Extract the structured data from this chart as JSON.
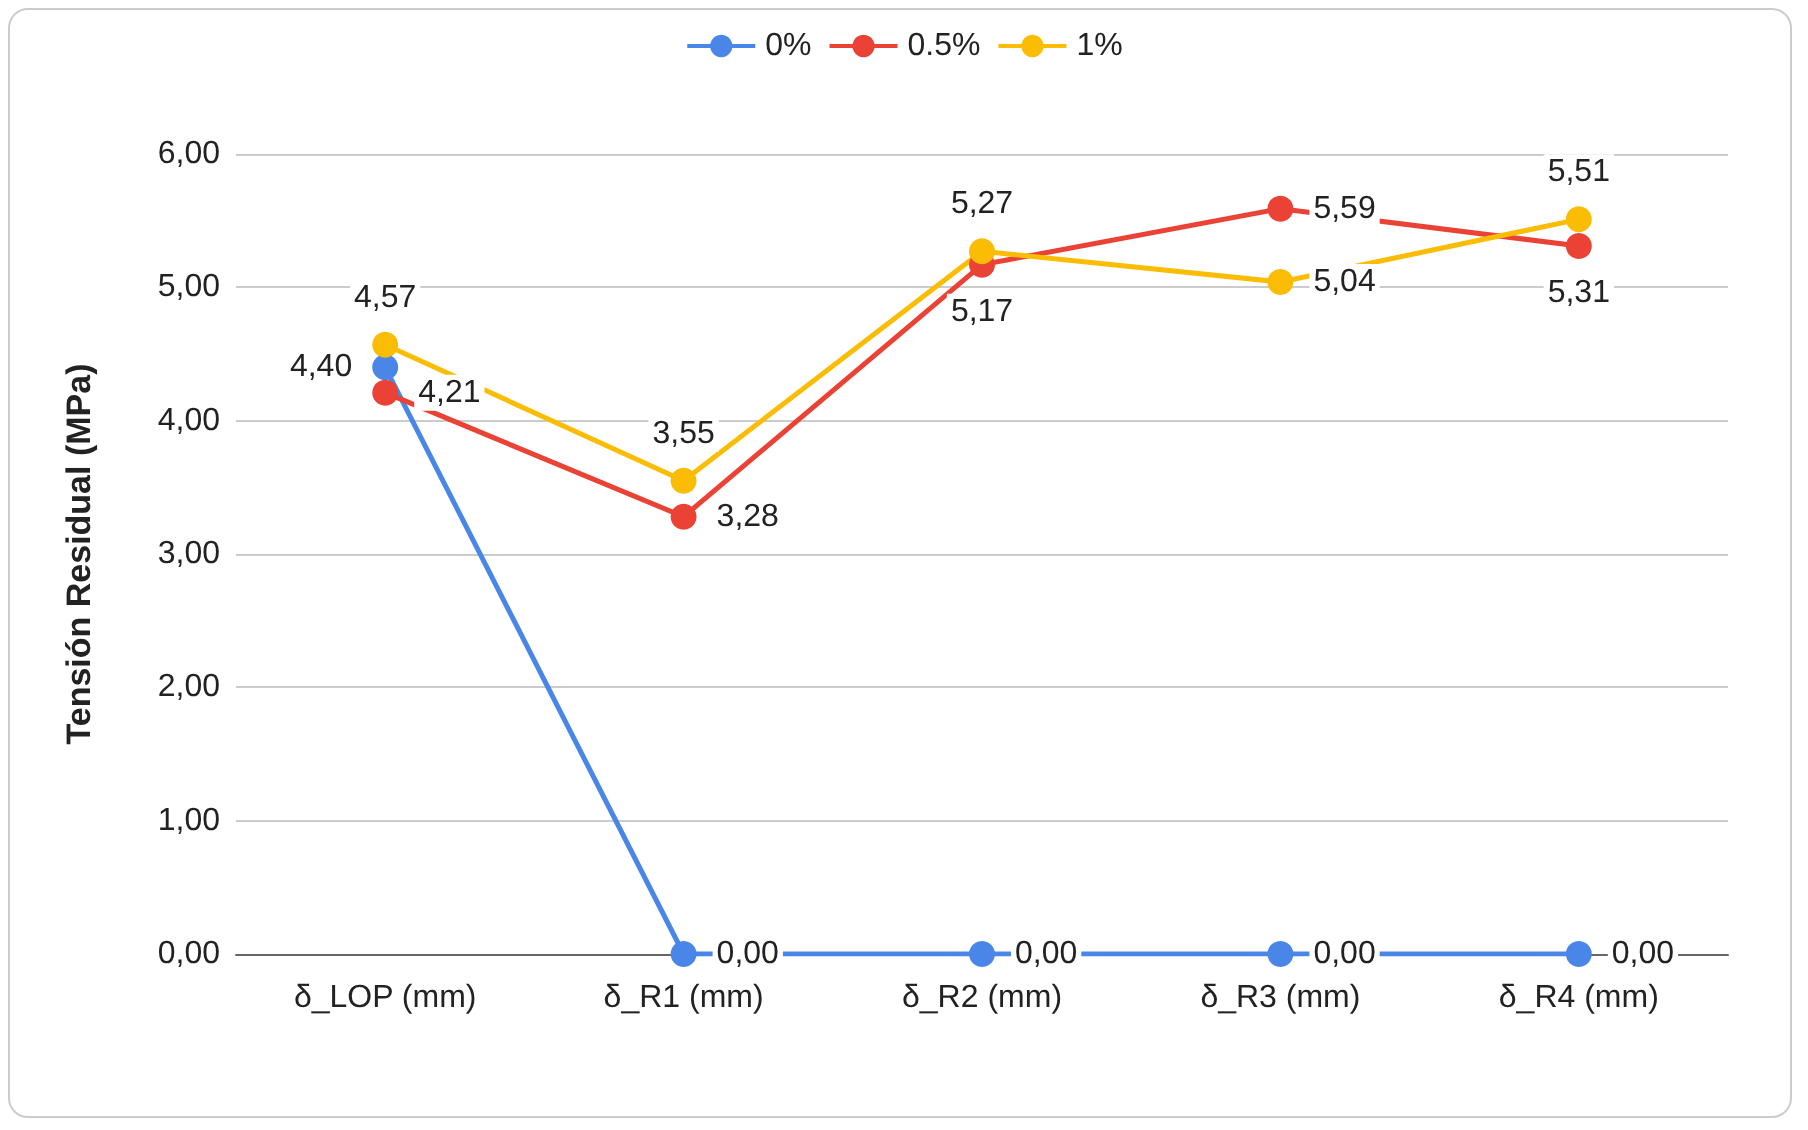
{
  "chart_data": {
    "type": "line",
    "ylabel": "Tensión Residual (MPa)",
    "categories": [
      "δ_LOP (mm)",
      "δ_R1 (mm)",
      "δ_R2 (mm)",
      "δ_R3 (mm)",
      "δ_R4 (mm)"
    ],
    "series": [
      {
        "name": "0%",
        "color": "#4a86e8",
        "values": [
          4.4,
          0,
          0,
          0,
          0
        ],
        "value_labels": [
          "4,40",
          "0,00",
          "0,00",
          "0,00",
          "0,00"
        ]
      },
      {
        "name": "0.5%",
        "color": "#ea4335",
        "values": [
          4.21,
          3.28,
          5.17,
          5.59,
          5.31
        ],
        "value_labels": [
          "4,21",
          "3,28",
          "5,17",
          "5,59",
          "5,31"
        ]
      },
      {
        "name": "1%",
        "color": "#fbbc04",
        "values": [
          4.57,
          3.55,
          5.27,
          5.04,
          5.51
        ],
        "value_labels": [
          "4,57",
          "3,55",
          "5,27",
          "5,04",
          "5,51"
        ]
      }
    ],
    "ylim": [
      0,
      6
    ],
    "yticks": [
      {
        "value": 0,
        "label": "0,00"
      },
      {
        "value": 1,
        "label": "1,00"
      },
      {
        "value": 2,
        "label": "2,00"
      },
      {
        "value": 3,
        "label": "3,00"
      },
      {
        "value": 4,
        "label": "4,00"
      },
      {
        "value": 5,
        "label": "5,00"
      },
      {
        "value": 6,
        "label": "6,00"
      }
    ],
    "grid": "y",
    "legend": "top",
    "marker": "circle",
    "line_style": "solid"
  }
}
